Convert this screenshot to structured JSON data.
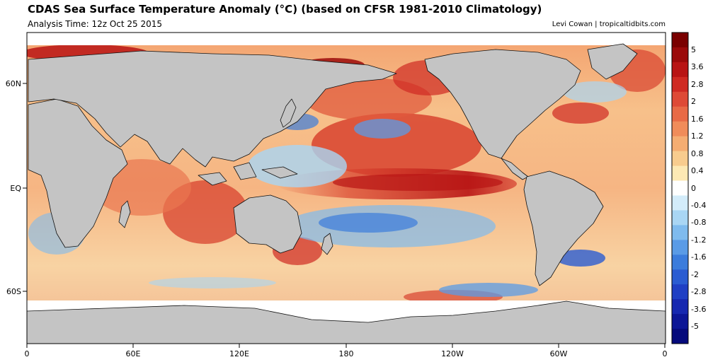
{
  "header": {
    "title": "CDAS Sea Surface Temperature Anomaly (°C) (based on CFSR 1981-2010 Climatology)",
    "subtitle": "Analysis Time: 12z Oct 25 2015",
    "credit": "Levi Cowan | tropicaltidbits.com"
  },
  "axes": {
    "lat_ticks": [
      "60N",
      "EQ",
      "60S"
    ],
    "lon_ticks": [
      "0",
      "60E",
      "120E",
      "180",
      "120W",
      "60W",
      "0"
    ]
  },
  "colorbar": {
    "labels": [
      "5",
      "3.6",
      "2.8",
      "2",
      "1.6",
      "1.2",
      "0.8",
      "0.4",
      "0",
      "-0.4",
      "-0.8",
      "-1.2",
      "-1.6",
      "-2",
      "-2.8",
      "-3.6",
      "-5"
    ],
    "colors": [
      "#7a0000",
      "#9b0a0a",
      "#b81414",
      "#cf2a22",
      "#de4a36",
      "#e86a46",
      "#f08c5a",
      "#f5ad72",
      "#f8cc8e",
      "#fde9b4",
      "#ffffff",
      "#d3ecfa",
      "#a9d6f4",
      "#7fbbee",
      "#5a9be6",
      "#3b7cdc",
      "#2a5cd2",
      "#1f3fc4",
      "#1628b0",
      "#0c1696",
      "#050a7c"
    ]
  },
  "colors": {
    "land": "#c4c4c4",
    "ice": "#ffffff",
    "border": "#111111"
  }
}
